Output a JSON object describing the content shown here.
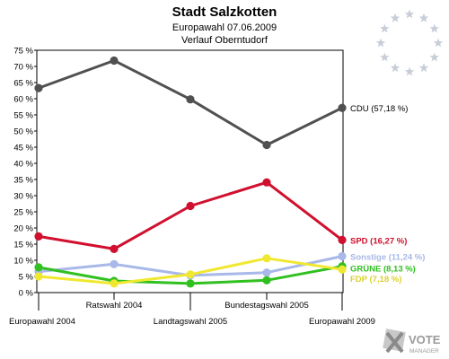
{
  "header": {
    "title": "Stadt Salzkotten",
    "subtitle": "Europawahl 07.06.2009",
    "subtitle2": "Verlauf Oberntudorf"
  },
  "logo": {
    "text": "VOTE",
    "subtext": "MANAGER"
  },
  "chart_data": {
    "type": "line",
    "title": "Stadt Salzkotten",
    "subtitle": "Europawahl 07.06.2009 / Verlauf Oberntudorf",
    "categories": [
      "Europawahl 2004",
      "Ratswahl 2004",
      "Landtagswahl 2005",
      "Bundestagswahl 2005",
      "Europawahl 2009"
    ],
    "ylim": [
      0,
      75
    ],
    "yticks": [
      0,
      5,
      10,
      15,
      20,
      25,
      30,
      35,
      40,
      45,
      50,
      55,
      60,
      65,
      70,
      75
    ],
    "ytick_labels": [
      "0 %",
      "5 %",
      "10 %",
      "15 %",
      "20 %",
      "25 %",
      "30 %",
      "35 %",
      "40 %",
      "45 %",
      "50 %",
      "55 %",
      "60 %",
      "65 %",
      "70 %",
      "75 %"
    ],
    "grid": false,
    "series": [
      {
        "name": "CDU",
        "values": [
          63.3,
          71.8,
          59.8,
          45.7,
          57.18
        ],
        "color": "#505050",
        "end_label": "CDU (57,18 %)",
        "label_color": "#000000"
      },
      {
        "name": "SPD",
        "values": [
          17.4,
          13.5,
          26.8,
          34.1,
          16.27
        ],
        "color": "#d0102e",
        "end_label": "SPD (16,27 %)",
        "label_color": "#d0102e"
      },
      {
        "name": "Sonstige",
        "values": [
          6.5,
          8.8,
          5.3,
          6.2,
          11.24
        ],
        "color": "#a8b8e8",
        "end_label": "Sonstige (11,24 %)",
        "label_color": "#a8b8e8"
      },
      {
        "name": "GRÜNE",
        "values": [
          7.8,
          3.6,
          2.8,
          3.8,
          8.13
        ],
        "color": "#30c020",
        "end_label": "GRÜNE (8,13 %)",
        "label_color": "#30c020"
      },
      {
        "name": "FDP",
        "values": [
          5.0,
          2.8,
          5.6,
          10.6,
          7.18
        ],
        "color": "#f0e830",
        "end_label": "FDP (7,18 %)",
        "label_color": "#d8d030"
      }
    ]
  }
}
